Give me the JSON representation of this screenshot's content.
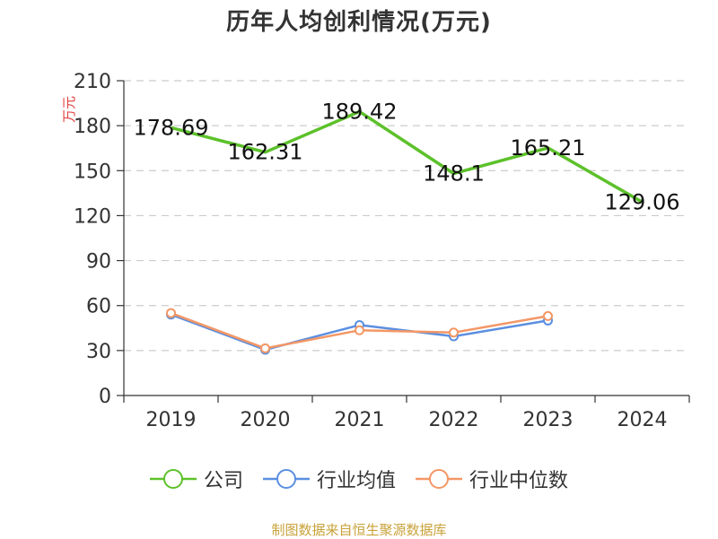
{
  "title": "历年人均创利情况(万元)",
  "source": "制图数据来自恒生聚源数据库",
  "chart_data": {
    "type": "line",
    "title": "历年人均创利情况(万元)",
    "ylabel": "万元",
    "xlabel": "",
    "categories": [
      "2019",
      "2020",
      "2021",
      "2022",
      "2023",
      "2024"
    ],
    "ylim": [
      0,
      210
    ],
    "yticks": [
      0,
      30,
      60,
      90,
      120,
      150,
      180,
      210
    ],
    "grid": true,
    "legend_position": "bottom",
    "series": [
      {
        "name": "公司",
        "color": "#5cc12a",
        "values": [
          178.69,
          162.31,
          189.42,
          148.1,
          165.21,
          129.06
        ],
        "labels": [
          "178.69",
          "162.31",
          "189.42",
          "148.1",
          "165.21",
          "129.06"
        ],
        "show_labels": true,
        "markers": false
      },
      {
        "name": "行业均值",
        "color": "#5b8fe0",
        "values": [
          54,
          30.5,
          47,
          39.5,
          50,
          null
        ],
        "show_labels": false,
        "markers": true
      },
      {
        "name": "行业中位数",
        "color": "#f39766",
        "values": [
          55,
          31.5,
          43.5,
          42,
          53,
          null
        ],
        "show_labels": false,
        "markers": true
      }
    ]
  }
}
